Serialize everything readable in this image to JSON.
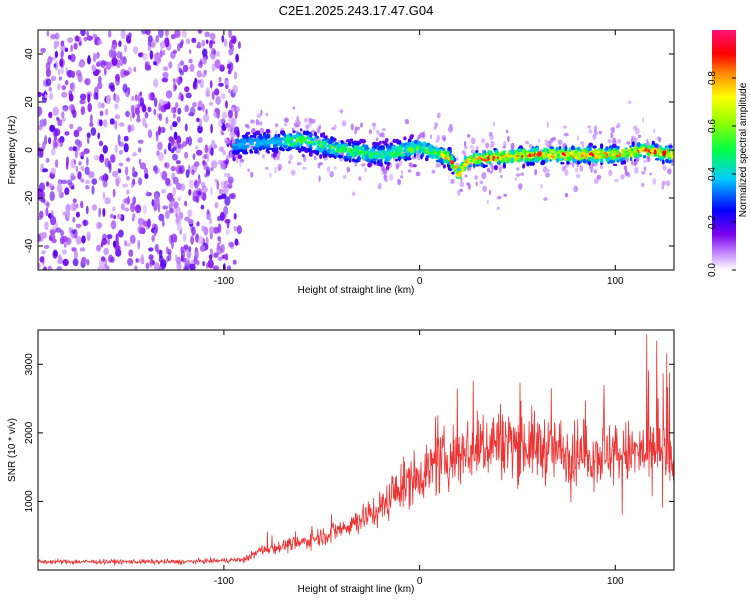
{
  "chart_data": [
    {
      "type": "heatmap",
      "title": "C2E1.2025.243.17.47.G04",
      "xlabel": "Height of straight line (km)",
      "ylabel": "Frequency (Hz)",
      "xlim": [
        -195,
        130
      ],
      "ylim": [
        -50,
        50
      ],
      "xticks": [
        -100,
        0,
        100
      ],
      "yticks": [
        -40,
        -20,
        0,
        20,
        40
      ],
      "colorbar": {
        "label": "Normalized spectral amplitude",
        "range": [
          0,
          1
        ],
        "ticks": [
          0.0,
          0.2,
          0.4,
          0.6,
          0.8
        ]
      },
      "ridge": {
        "description_points_km_hz": [
          [
            -100,
            2
          ],
          [
            -60,
            4
          ],
          [
            -40,
            0
          ],
          [
            -20,
            -2
          ],
          [
            0,
            1
          ],
          [
            15,
            -3
          ],
          [
            20,
            -10
          ],
          [
            25,
            -4
          ],
          [
            40,
            -3
          ],
          [
            60,
            -2
          ],
          [
            80,
            -2
          ],
          [
            100,
            -2
          ],
          [
            115,
            0
          ],
          [
            130,
            -2
          ]
        ],
        "noise_region_km": [
          -195,
          -92
        ]
      }
    },
    {
      "type": "line",
      "xlabel": "Height of straight line (km)",
      "ylabel": "SNR (10 * v/v)",
      "xlim": [
        -195,
        130
      ],
      "ylim": [
        0,
        3500
      ],
      "xticks": [
        -100,
        0,
        100
      ],
      "yticks": [
        1000,
        2000,
        3000
      ],
      "series": [
        {
          "name": "SNR",
          "color": "#ee3333",
          "envelope_km_snr": [
            [
              -195,
              120
            ],
            [
              -120,
              120
            ],
            [
              -90,
              150
            ],
            [
              -80,
              300
            ],
            [
              -60,
              400
            ],
            [
              -40,
              600
            ],
            [
              -20,
              900
            ],
            [
              -10,
              1200
            ],
            [
              0,
              1400
            ],
            [
              20,
              1700
            ],
            [
              40,
              1900
            ],
            [
              60,
              1800
            ],
            [
              80,
              1700
            ],
            [
              100,
              1700
            ],
            [
              120,
              1700
            ],
            [
              130,
              1600
            ]
          ]
        }
      ]
    }
  ]
}
